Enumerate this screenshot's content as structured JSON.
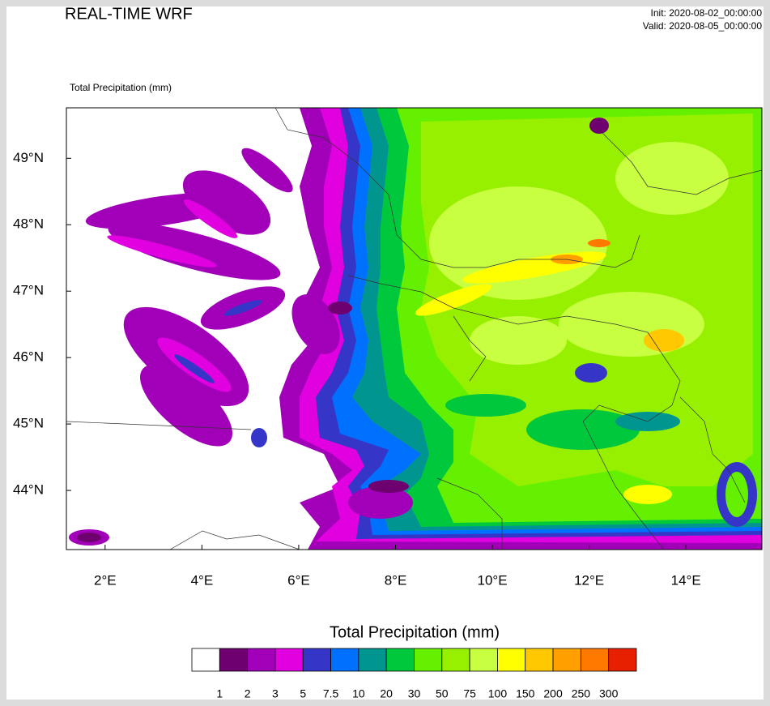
{
  "header": {
    "title": "REAL-TIME WRF",
    "init": "Init: 2020-08-02_00:00:00",
    "valid": "Valid: 2020-08-05_00:00:00"
  },
  "map": {
    "subtitle": "Total Precipitation   (mm)",
    "xlim": [
      1.2,
      15.57
    ],
    "ylim": [
      43.11,
      49.76
    ],
    "xticks": [
      {
        "value": 2,
        "label": "2°E"
      },
      {
        "value": 4,
        "label": "4°E"
      },
      {
        "value": 6,
        "label": "6°E"
      },
      {
        "value": 8,
        "label": "8°E"
      },
      {
        "value": 10,
        "label": "10°E"
      },
      {
        "value": 12,
        "label": "12°E"
      },
      {
        "value": 14,
        "label": "14°E"
      }
    ],
    "yticks": [
      {
        "value": 44,
        "label": "44°N"
      },
      {
        "value": 45,
        "label": "45°N"
      },
      {
        "value": 46,
        "label": "46°N"
      },
      {
        "value": 47,
        "label": "47°N"
      },
      {
        "value": 48,
        "label": "48°N"
      },
      {
        "value": 49,
        "label": "49°N"
      }
    ]
  },
  "colorbar": {
    "title": "Total Precipitation  (mm)",
    "levels": [
      1,
      2,
      3,
      5,
      7.5,
      10,
      20,
      30,
      50,
      75,
      100,
      150,
      200,
      250,
      300
    ],
    "colors": [
      "#ffffff",
      "#6e0070",
      "#a100b8",
      "#e000e0",
      "#3535c8",
      "#0070ff",
      "#00968f",
      "#00c83c",
      "#64f000",
      "#96f000",
      "#c8ff40",
      "#ffff00",
      "#ffc800",
      "#ffa000",
      "#ff7800",
      "#e62000"
    ]
  }
}
